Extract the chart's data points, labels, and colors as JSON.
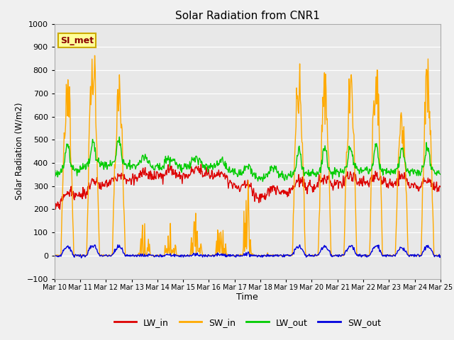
{
  "title": "Solar Radiation from CNR1",
  "xlabel": "Time",
  "ylabel": "Solar Radiation (W/m2)",
  "ylim": [
    -100,
    1000
  ],
  "xlim": [
    0,
    360
  ],
  "fig_facecolor": "#f0f0f0",
  "ax_facecolor": "#e8e8e8",
  "grid_color": "white",
  "series": {
    "LW_in": {
      "color": "#dd0000",
      "lw": 1.0
    },
    "SW_in": {
      "color": "#ffaa00",
      "lw": 1.0
    },
    "LW_out": {
      "color": "#00cc00",
      "lw": 1.0
    },
    "SW_out": {
      "color": "#0000dd",
      "lw": 1.0
    }
  },
  "legend_labels": [
    "LW_in",
    "SW_in",
    "LW_out",
    "SW_out"
  ],
  "legend_colors": [
    "#dd0000",
    "#ffaa00",
    "#00cc00",
    "#0000dd"
  ],
  "annotation_text": "SI_met",
  "annotation_color": "#8b0000",
  "annotation_bg": "#ffff99",
  "annotation_border": "#ccaa00",
  "x_tick_labels": [
    "Mar 10",
    "Mar 11",
    "Mar 12",
    "Mar 13",
    "Mar 14",
    "Mar 15",
    "Mar 16",
    "Mar 17",
    "Mar 18",
    "Mar 19",
    "Mar 20",
    "Mar 21",
    "Mar 22",
    "Mar 23",
    "Mar 24",
    "Mar 25"
  ],
  "x_tick_positions": [
    0,
    24,
    48,
    72,
    96,
    120,
    144,
    168,
    192,
    216,
    240,
    264,
    288,
    312,
    336,
    360
  ]
}
